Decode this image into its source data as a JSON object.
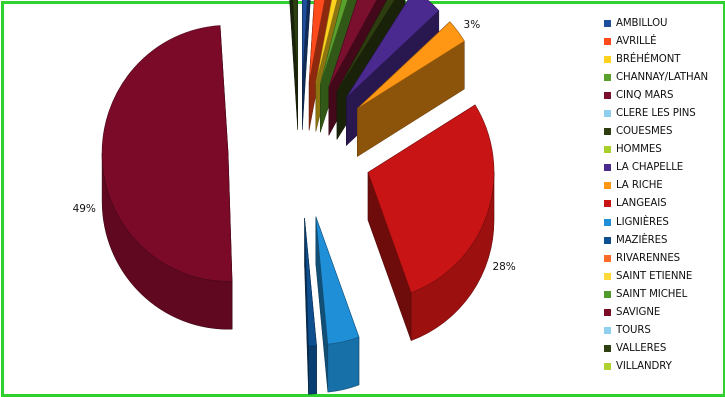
{
  "chart_data": {
    "type": "pie",
    "style": "exploded-3d",
    "title": "",
    "legend_position": "right",
    "slices": [
      {
        "name": "AMBILLOU",
        "value": 1,
        "color": "#1f4e9c",
        "label": "1%"
      },
      {
        "name": "AVRILLÉ",
        "value": 2,
        "color": "#ff4a1c",
        "label": "2%"
      },
      {
        "name": "BRÉHÉMONT",
        "value": 1,
        "color": "#ffd21f",
        "label": "1%"
      },
      {
        "name": "CHANNAY/LATHAN",
        "value": 1,
        "color": "#5aa02c",
        "label": "1%"
      },
      {
        "name": "CINQ MARS",
        "value": 3,
        "color": "#7a0f2e",
        "label": "3%"
      },
      {
        "name": "CLERE LES PINS",
        "value": 0,
        "color": "#8ecfef",
        "label": ""
      },
      {
        "name": "COUESMES",
        "value": 1,
        "color": "#2e3d10",
        "label": "1%"
      },
      {
        "name": "HOMMES",
        "value": 0,
        "color": "#a8cf2a",
        "label": ""
      },
      {
        "name": "LA CHAPELLE",
        "value": 4,
        "color": "#4a2a8f",
        "label": "4%"
      },
      {
        "name": "LA RICHE",
        "value": 3,
        "color": "#ff9614",
        "label": "3%"
      },
      {
        "name": "LANGEAIS",
        "value": 28,
        "color": "#c81414",
        "label": "28%"
      },
      {
        "name": "LIGNIÈRES",
        "value": 4,
        "color": "#1f8fd8",
        "label": "4%"
      },
      {
        "name": "MAZIÈRES",
        "value": 1,
        "color": "#0d4f8f",
        "label": "1%"
      },
      {
        "name": "RIVARENNES",
        "value": 0,
        "color": "#ff6a28",
        "label": ""
      },
      {
        "name": "SAINT ETIENNE",
        "value": 0,
        "color": "#ffd83a",
        "label": ""
      },
      {
        "name": "SAINT MICHEL",
        "value": 0,
        "color": "#4e9a2a",
        "label": ""
      },
      {
        "name": "SAVIGNE",
        "value": 49,
        "color": "#7a0a28",
        "label": "49%"
      },
      {
        "name": "TOURS",
        "value": 0,
        "color": "#8fd0f0",
        "label": ""
      },
      {
        "name": "VALLERES",
        "value": 1,
        "color": "#2e3f12",
        "label": "1%"
      },
      {
        "name": "VILLANDRY",
        "value": 0,
        "color": "#b0d230",
        "label": ""
      }
    ]
  }
}
